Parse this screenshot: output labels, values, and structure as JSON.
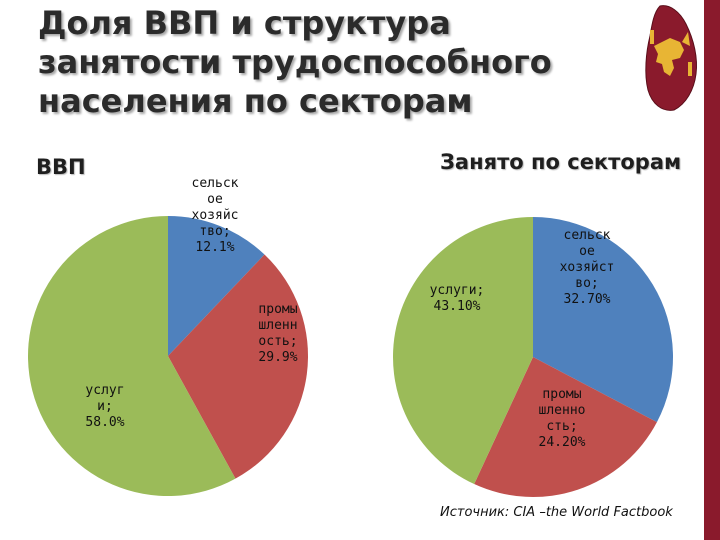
{
  "title": "Доля ВВП и структура занятости трудоспособного населения по секторам",
  "source": "Источник: CIA –the World Factbook",
  "colors": {
    "blue": "#4f81bd",
    "red": "#c0504d",
    "green": "#9bbb59",
    "bar": "#8a1a2c"
  },
  "emblem": "sri-lanka-map-lion-flag-icon",
  "chart_data": [
    {
      "type": "pie",
      "title": "ВВП",
      "slices": [
        {
          "name": "сельское хозяйство",
          "value": 12.1,
          "label_lines": [
            "сельск",
            "ое",
            "хозяйс",
            "тво;",
            "12.1%"
          ],
          "color": "#4f81bd"
        },
        {
          "name": "промышленность",
          "value": 29.9,
          "label_lines": [
            "промы",
            "шленн",
            "ость;",
            "29.9%"
          ],
          "color": "#c0504d"
        },
        {
          "name": "услуги",
          "value": 58.0,
          "label_lines": [
            "услуг",
            "и;",
            "58.0%"
          ],
          "color": "#9bbb59"
        }
      ]
    },
    {
      "type": "pie",
      "title": "Занято по секторам",
      "slices": [
        {
          "name": "сельское хозяйство",
          "value": 32.7,
          "label_lines": [
            "сельск",
            "ое",
            "хозяйст",
            "во;",
            "32.70%"
          ],
          "color": "#4f81bd"
        },
        {
          "name": "промышленность",
          "value": 24.2,
          "label_lines": [
            "промы",
            "шленно",
            "сть;",
            "24.20%"
          ],
          "color": "#c0504d"
        },
        {
          "name": "услуги",
          "value": 43.1,
          "label_lines": [
            "услуги;",
            "43.10%"
          ],
          "color": "#9bbb59"
        }
      ]
    }
  ]
}
